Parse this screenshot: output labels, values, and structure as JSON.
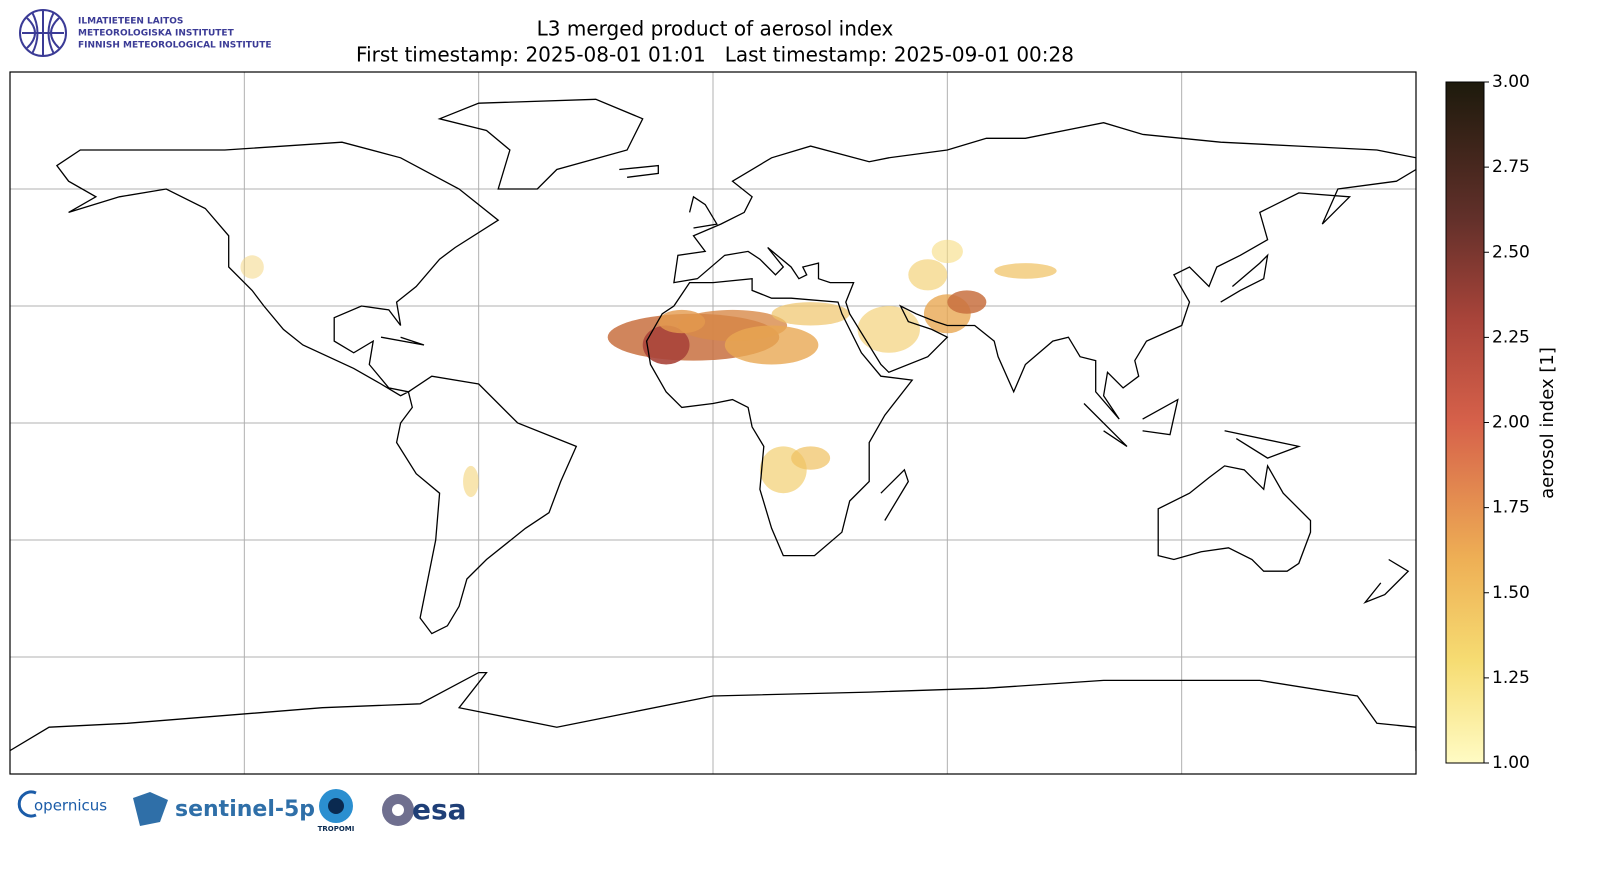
{
  "header": {
    "institute": [
      "ILMATIETEEN LAITOS",
      "METEOROLOGISKA INSTITUTET",
      "FINNISH METEOROLOGICAL INSTITUTE"
    ]
  },
  "title": [
    "L3 merged product of aerosol index",
    "First timestamp: 2025-08-01 01:01   Last timestamp: 2025-09-01 00:28"
  ],
  "colorbar": {
    "label": "aerosol index [1]",
    "lim": [
      1,
      3
    ],
    "ticks": [
      {
        "value": 1,
        "label": "1.00"
      },
      {
        "value": 1.25,
        "label": "1.25"
      },
      {
        "value": 1.5,
        "label": "1.50"
      },
      {
        "value": 1.75,
        "label": "1.75"
      },
      {
        "value": 2,
        "label": "2.00"
      },
      {
        "value": 2.25,
        "label": "2.25"
      },
      {
        "value": 2.5,
        "label": "2.50"
      },
      {
        "value": 2.75,
        "label": "2.75"
      },
      {
        "value": 3,
        "label": "3.00"
      }
    ]
  },
  "footer": {
    "logos": [
      "opernicus",
      "sentinel-5p",
      "TROPOMI",
      "esa"
    ]
  }
}
